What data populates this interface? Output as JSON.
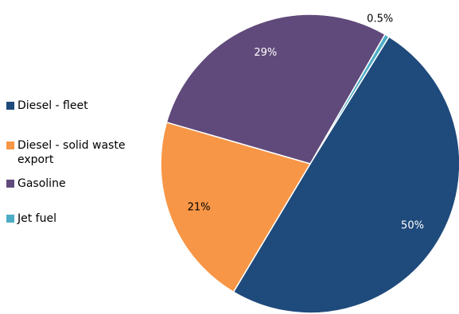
{
  "chart_data": {
    "type": "pie",
    "title": "",
    "legend_position": "left",
    "slices": [
      {
        "label": "Diesel - fleet",
        "value": 50,
        "display": "50%",
        "color": "#1f4a7c"
      },
      {
        "label": "Diesel - solid waste export",
        "value": 21,
        "display": "21%",
        "color": "#f79646"
      },
      {
        "label": "Gasoline",
        "value": 29,
        "display": "29%",
        "color": "#604a7b"
      },
      {
        "label": "Jet fuel",
        "value": 0.5,
        "display": "0.5%",
        "color": "#4bacc6"
      }
    ],
    "slice_order_clockwise_from_top": [
      "Jet fuel",
      "Diesel - fleet",
      "Diesel - solid waste export",
      "Gasoline"
    ]
  }
}
